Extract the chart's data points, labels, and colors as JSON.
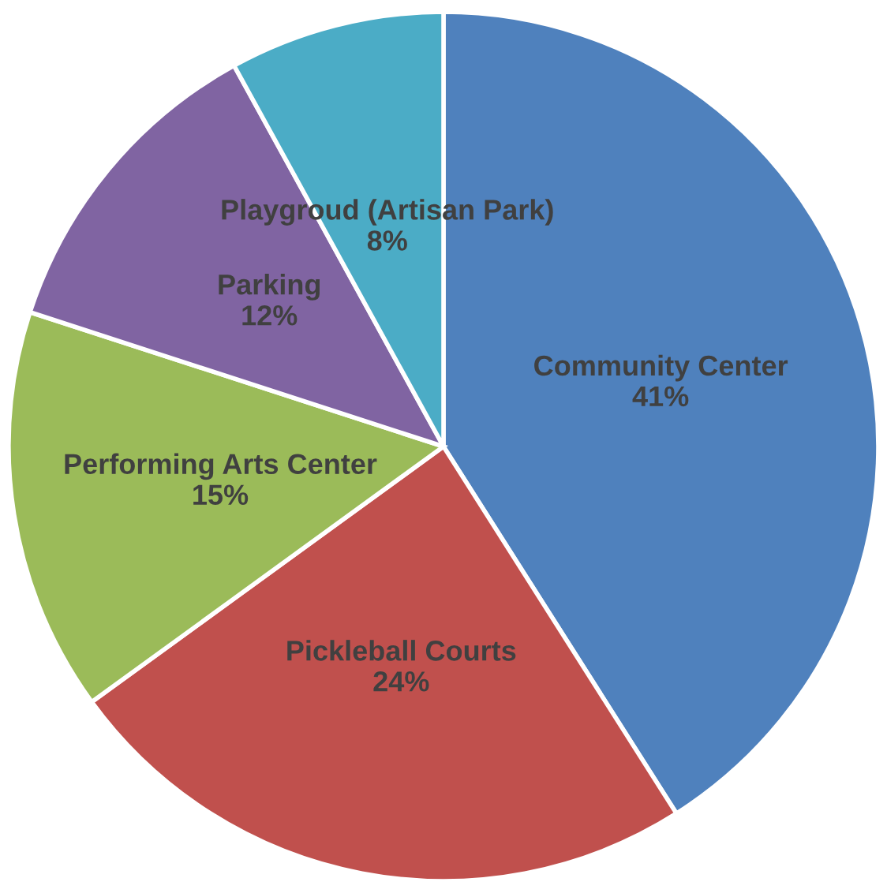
{
  "chart_data": {
    "type": "pie",
    "categories": [
      "Community Center",
      "Pickleball Courts",
      "Performing Arts Center",
      "Parking",
      "Playgroud (Artisan Park)"
    ],
    "values": [
      41,
      24,
      15,
      12,
      8
    ],
    "value_labels": [
      "41%",
      "24%",
      "15%",
      "12%",
      "8%"
    ],
    "colors": [
      "#4f81bd",
      "#c0504d",
      "#9bbb59",
      "#8064a2",
      "#4bacc6"
    ],
    "legend": false
  }
}
